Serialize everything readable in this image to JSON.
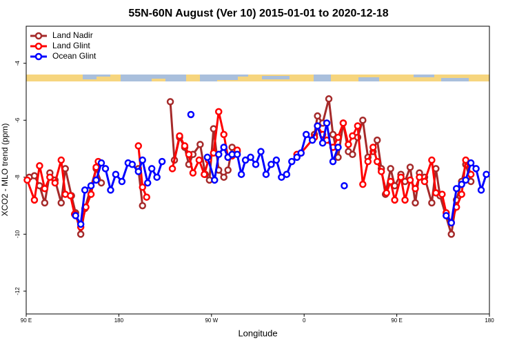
{
  "chart_data": {
    "type": "line",
    "title": "55N-60N August (Ver 10)   2015-01-01 to 2020-12-18",
    "x_label": "Longitude",
    "y_label": "XCO2 - MLO trend (ppm)",
    "xlim": [
      90,
      540
    ],
    "xticks": [
      {
        "value": 90,
        "label": "90 E"
      },
      180,
      {
        "value": 270,
        "label": "90 W"
      },
      {
        "value": 360,
        "label": "0"
      },
      {
        "value": 450,
        "label": "90 E"
      },
      {
        "value": 540,
        "label": "180"
      }
    ],
    "ylim": [
      -12.8,
      -2.7
    ],
    "yticks": [
      -4,
      -6,
      -8,
      -10,
      -12
    ],
    "legend": "top-left",
    "grid": false,
    "series": [
      {
        "name": "Land Nadir",
        "color": "#a52a2a",
        "x": [
          93,
          98,
          103,
          108,
          113,
          118,
          124,
          128,
          134,
          138,
          143,
          147,
          158,
          163,
          null,
          199,
          203,
          null,
          230,
          234,
          239,
          244,
          248,
          252,
          259,
          264,
          268,
          272,
          277,
          282,
          286,
          290,
          295,
          null,
          370,
          373,
          378,
          384,
          388,
          393,
          398,
          403,
          407,
          412,
          417,
          422,
          427,
          431,
          435,
          439,
          444,
          448,
          454,
          458,
          463,
          468,
          472,
          477,
          484,
          488,
          492,
          503,
          508,
          513,
          517,
          522
        ],
        "values": [
          -8.0,
          -7.95,
          -8.3,
          -8.9,
          -7.85,
          -8.1,
          -8.9,
          -7.7,
          -8.65,
          -9.25,
          -10.0,
          -9.1,
          -7.7,
          -8.2,
          null,
          -7.7,
          -9.0,
          null,
          -5.35,
          -7.4,
          -6.6,
          -6.95,
          -7.55,
          -7.2,
          -6.85,
          -7.9,
          -8.1,
          -6.3,
          -7.75,
          -8.0,
          -7.75,
          -6.95,
          -7.1,
          null,
          -6.5,
          -5.85,
          -6.1,
          -5.25,
          -6.5,
          -7.3,
          -6.1,
          -7.1,
          -7.2,
          -6.6,
          -6.0,
          -7.3,
          -7.1,
          -6.7,
          -7.7,
          -8.6,
          -7.7,
          -8.3,
          -7.9,
          -8.15,
          -7.65,
          -8.9,
          -7.85,
          -8.0,
          -8.9,
          -7.7,
          -8.65,
          -10.0,
          -8.8,
          -8.15,
          -7.55,
          -8.15
        ]
      },
      {
        "name": "Land Glint",
        "color": "#ff0000",
        "x": [
          91,
          98,
          103,
          108,
          113,
          118,
          124,
          128,
          133,
          137,
          143,
          148,
          153,
          158,
          160,
          null,
          199,
          203,
          207,
          null,
          232,
          239,
          244,
          248,
          252,
          258,
          263,
          267,
          272,
          277,
          282,
          286,
          290,
          295,
          null,
          353,
          357,
          370,
          373,
          378,
          382,
          388,
          393,
          398,
          403,
          407,
          412,
          417,
          422,
          427,
          431,
          435,
          440,
          444,
          448,
          454,
          458,
          463,
          468,
          472,
          477,
          484,
          488,
          494,
          498,
          503,
          508,
          513,
          517,
          522
        ],
        "values": [
          -8.1,
          -8.8,
          -7.6,
          -8.4,
          -8.0,
          -8.2,
          -7.4,
          -8.6,
          -8.65,
          -9.3,
          -9.75,
          -9.05,
          -8.6,
          -7.65,
          -7.45,
          null,
          -6.9,
          -8.35,
          -8.7,
          null,
          -7.7,
          -6.55,
          -6.9,
          -7.2,
          -7.85,
          -7.4,
          -7.9,
          -7.4,
          -7.15,
          -5.7,
          -6.5,
          -7.3,
          -7.25,
          -7.05,
          null,
          -7.2,
          -7.15,
          -6.6,
          -6.2,
          -6.5,
          -6.7,
          -6.95,
          -6.6,
          -6.1,
          -6.85,
          -6.55,
          -6.2,
          -8.25,
          -7.45,
          -6.95,
          -7.45,
          -7.8,
          -8.55,
          -8.15,
          -8.8,
          -8.0,
          -8.8,
          -8.1,
          -8.4,
          -8.0,
          -8.15,
          -7.4,
          -8.55,
          -8.6,
          -9.25,
          -9.6,
          -9.05,
          -8.6,
          -7.4,
          -7.9
        ]
      },
      {
        "name": "Ocean Glint",
        "color": "#0000ff",
        "x": [
          138,
          143,
          147,
          153,
          158,
          163,
          167,
          172,
          177,
          183,
          189,
          193,
          199,
          203,
          208,
          212,
          217,
          222,
          null,
          250,
          null,
          266,
          273,
          277,
          282,
          286,
          290,
          295,
          299,
          303,
          308,
          313,
          318,
          323,
          328,
          333,
          338,
          343,
          348,
          353,
          357,
          362,
          368,
          373,
          378,
          382,
          388,
          393,
          null,
          399,
          null,
          498,
          503,
          508,
          513,
          517,
          522,
          527,
          532,
          537
        ],
        "values": [
          -9.35,
          -9.65,
          -8.45,
          -8.3,
          -8.1,
          -7.5,
          -7.7,
          -8.45,
          -7.9,
          -8.15,
          -7.5,
          -7.55,
          -7.8,
          -7.4,
          -8.2,
          -7.7,
          -8.0,
          -7.45,
          null,
          -5.8,
          null,
          -7.3,
          -8.1,
          -7.2,
          -6.95,
          -7.3,
          -7.2,
          -7.2,
          -7.9,
          -7.4,
          -7.3,
          -7.55,
          -7.1,
          -7.9,
          -7.55,
          -7.4,
          -8.0,
          -7.9,
          -7.45,
          -7.3,
          -7.15,
          -6.5,
          -6.7,
          -6.2,
          -6.8,
          -6.1,
          -7.45,
          -6.95,
          null,
          -8.3,
          null,
          -9.35,
          -9.6,
          -8.4,
          -8.25,
          -8.1,
          -7.5,
          -7.7,
          -8.45,
          -7.9
        ]
      }
    ]
  }
}
